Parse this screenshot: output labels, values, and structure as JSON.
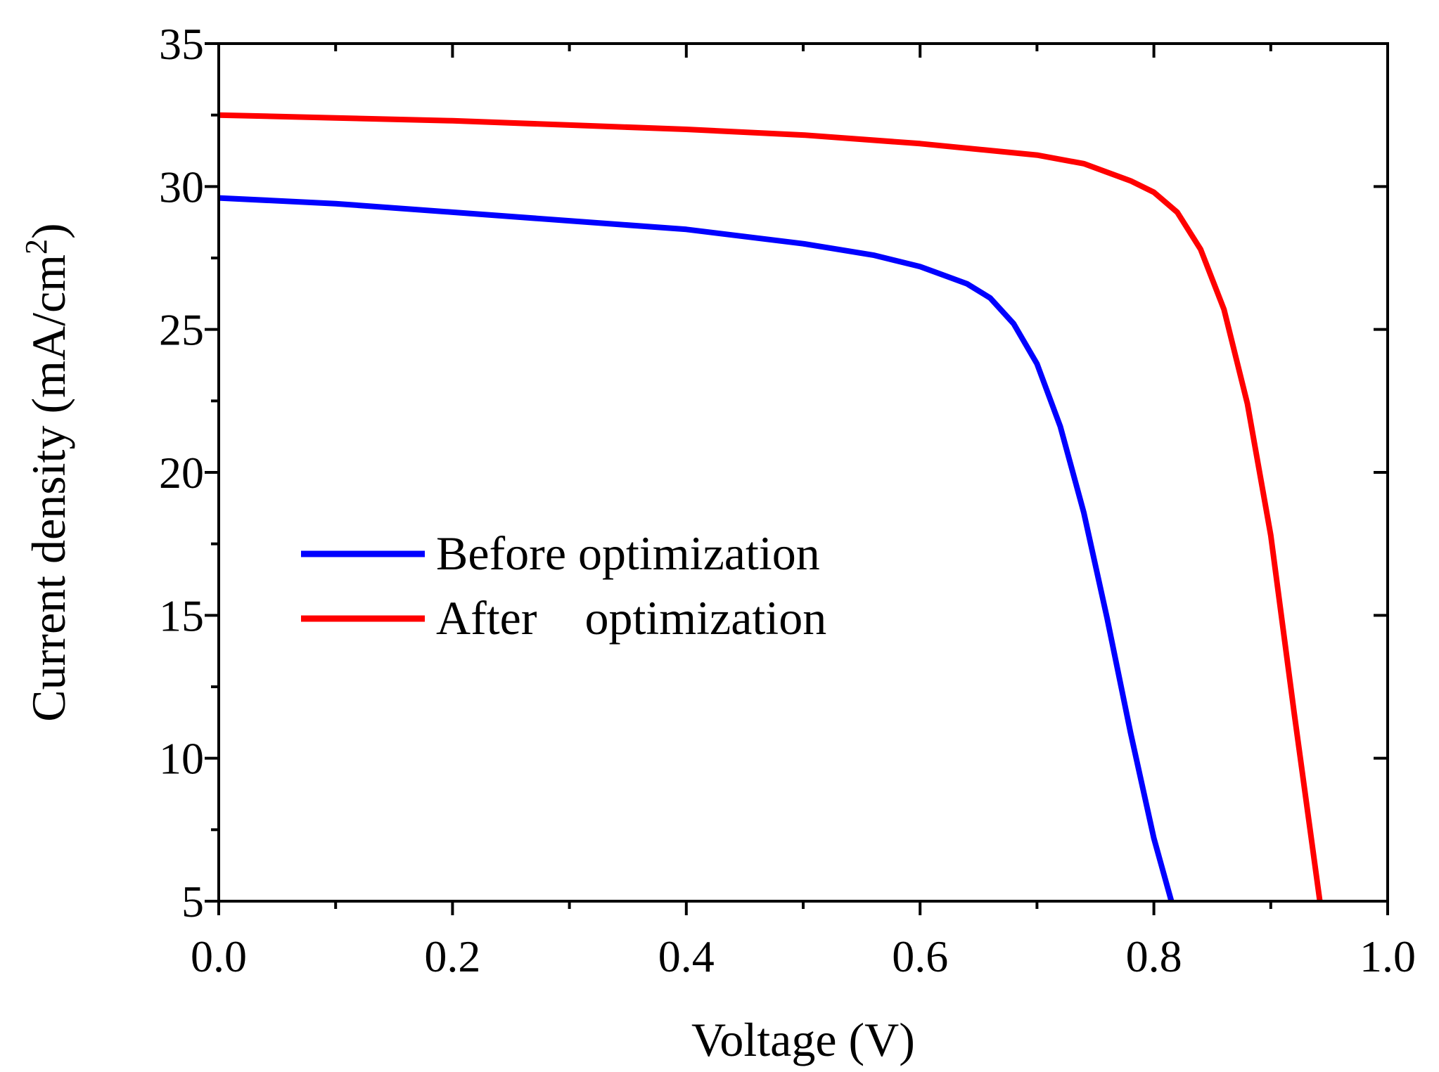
{
  "chart_data": {
    "type": "line",
    "title": "",
    "xlabel": "Voltage (V)",
    "ylabel": "Current density (mA/cm",
    "ylabel_superscript": "2",
    "ylabel_suffix": ")",
    "xlim": [
      0.0,
      1.0
    ],
    "ylim": [
      5,
      35
    ],
    "x_ticks": [
      0.0,
      0.2,
      0.4,
      0.6,
      0.8,
      1.0
    ],
    "x_tick_labels": [
      "0.0",
      "0.2",
      "0.4",
      "0.6",
      "0.8",
      "1.0"
    ],
    "x_minor_ticks": [
      0.1,
      0.3,
      0.5,
      0.7,
      0.9
    ],
    "y_ticks": [
      5,
      10,
      15,
      20,
      25,
      30,
      35
    ],
    "y_tick_labels": [
      "5",
      "10",
      "15",
      "20",
      "25",
      "30",
      "35"
    ],
    "y_minor_ticks": [
      7.5,
      12.5,
      17.5,
      22.5,
      27.5,
      32.5
    ],
    "grid": false,
    "legend_position": "center-left",
    "series": [
      {
        "name": "Before optimization",
        "color": "#0000ff",
        "x": [
          0.0,
          0.1,
          0.2,
          0.3,
          0.4,
          0.5,
          0.56,
          0.6,
          0.62,
          0.64,
          0.66,
          0.68,
          0.7,
          0.72,
          0.74,
          0.76,
          0.78,
          0.8,
          0.815
        ],
        "y": [
          29.6,
          29.4,
          29.1,
          28.8,
          28.5,
          28.0,
          27.6,
          27.2,
          26.9,
          26.6,
          26.1,
          25.2,
          23.8,
          21.6,
          18.6,
          14.9,
          10.9,
          7.2,
          5.0
        ]
      },
      {
        "name": "After    optimization",
        "color": "#ff0000",
        "x": [
          0.0,
          0.1,
          0.2,
          0.3,
          0.4,
          0.5,
          0.6,
          0.7,
          0.74,
          0.76,
          0.78,
          0.8,
          0.82,
          0.84,
          0.86,
          0.88,
          0.9,
          0.92,
          0.942
        ],
        "y": [
          32.5,
          32.4,
          32.3,
          32.15,
          32.0,
          31.8,
          31.5,
          31.1,
          30.8,
          30.5,
          30.2,
          29.8,
          29.1,
          27.8,
          25.7,
          22.4,
          17.8,
          11.6,
          5.0
        ]
      }
    ]
  }
}
